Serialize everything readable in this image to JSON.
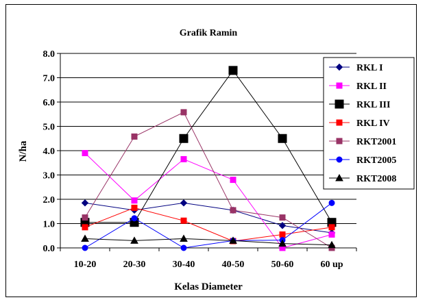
{
  "chart_data": {
    "type": "line",
    "title": "Grafik Ramin",
    "xlabel": "Kelas Diameter",
    "ylabel": "N/ha",
    "categories": [
      "10-20",
      "20-30",
      "30-40",
      "40-50",
      "50-60",
      "60 up"
    ],
    "ylim": [
      0,
      8
    ],
    "yticks": [
      "0.0",
      "1.0",
      "2.0",
      "3.0",
      "4.0",
      "5.0",
      "6.0",
      "7.0",
      "8.0"
    ],
    "grid": "horizontal",
    "legend_position": "right",
    "series": [
      {
        "name": "RKL I",
        "color": "#000080",
        "marker": "diamond",
        "values": [
          1.85,
          1.55,
          1.85,
          1.55,
          0.92,
          0.62
        ]
      },
      {
        "name": "RKL II",
        "color": "#ff00ff",
        "marker": "square",
        "values": [
          3.9,
          1.95,
          3.65,
          2.8,
          0.0,
          0.55
        ]
      },
      {
        "name": "RKL III",
        "color": "#000000",
        "marker": "square-large",
        "values": [
          1.05,
          1.05,
          4.5,
          7.3,
          4.5,
          1.05
        ]
      },
      {
        "name": "RKL IV",
        "color": "#ff0000",
        "marker": "square",
        "values": [
          0.85,
          1.65,
          1.12,
          0.28,
          0.55,
          0.85
        ]
      },
      {
        "name": "RKT2001",
        "color": "#993366",
        "marker": "square",
        "values": [
          1.25,
          4.58,
          5.58,
          1.55,
          1.25,
          0.0
        ]
      },
      {
        "name": "RKT2005",
        "color": "#0000ff",
        "marker": "circle",
        "values": [
          0.0,
          1.22,
          0.0,
          0.3,
          0.32,
          1.85
        ]
      },
      {
        "name": "RKT2008",
        "color": "#000000",
        "marker": "triangle",
        "values": [
          0.38,
          0.3,
          0.38,
          0.3,
          0.18,
          0.12
        ]
      }
    ]
  }
}
